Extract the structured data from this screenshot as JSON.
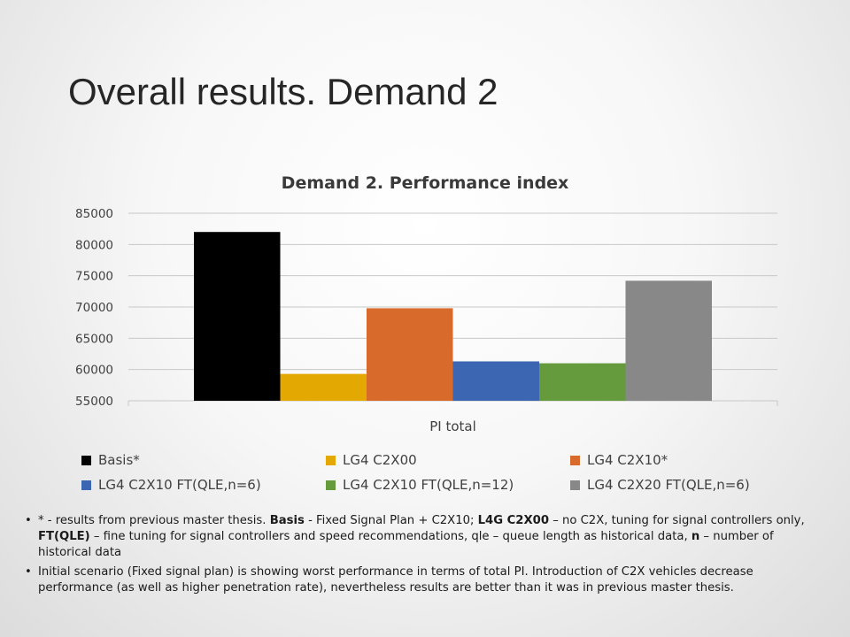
{
  "slide": {
    "title": "Overall results. Demand 2"
  },
  "chart_data": {
    "type": "bar",
    "title": "Demand 2. Performance index",
    "categories": [
      "PI total"
    ],
    "ylim": [
      55000,
      85000
    ],
    "yticks": [
      55000,
      60000,
      65000,
      70000,
      75000,
      80000,
      85000
    ],
    "grid": true,
    "legend_position": "bottom",
    "series": [
      {
        "name": "Basis*",
        "values": [
          82000
        ],
        "color": "#000000"
      },
      {
        "name": "LG4 C2X00",
        "values": [
          59300
        ],
        "color": "#E3A802"
      },
      {
        "name": "LG4 C2X10*",
        "values": [
          69800
        ],
        "color": "#D86A2B"
      },
      {
        "name": "LG4 C2X10 FT(QLE,n=6)",
        "values": [
          61300
        ],
        "color": "#3C65B2"
      },
      {
        "name": "LG4 C2X10 FT(QLE,n=12)",
        "values": [
          61000
        ],
        "color": "#659B3C"
      },
      {
        "name": "LG4 C2X20 FT(QLE,n=6)",
        "values": [
          74200
        ],
        "color": "#888888"
      }
    ]
  },
  "notes": [
    {
      "bullet": "•",
      "segments": [
        {
          "text": "* - results from previous master thesis. ",
          "bold": false
        },
        {
          "text": "Basis",
          "bold": true
        },
        {
          "text": " - Fixed Signal Plan + C2X10; ",
          "bold": false
        },
        {
          "text": "L4G C2X00",
          "bold": true
        },
        {
          "text": " – no C2X, tuning for signal controllers only, ",
          "bold": false
        },
        {
          "text": "FT(QLE)",
          "bold": true
        },
        {
          "text": " – fine tuning for signal controllers and  speed recommendations, qle – queue length as historical data, ",
          "bold": false
        },
        {
          "text": "n",
          "bold": true
        },
        {
          "text": " – number of historical data",
          "bold": false
        }
      ]
    },
    {
      "bullet": "•",
      "segments": [
        {
          "text": "Initial scenario (Fixed signal plan) is showing worst performance in terms of total PI. Introduction of C2X vehicles decrease performance (as well as higher penetration rate), nevertheless results are better than it was in previous master thesis.",
          "bold": false
        }
      ]
    }
  ]
}
